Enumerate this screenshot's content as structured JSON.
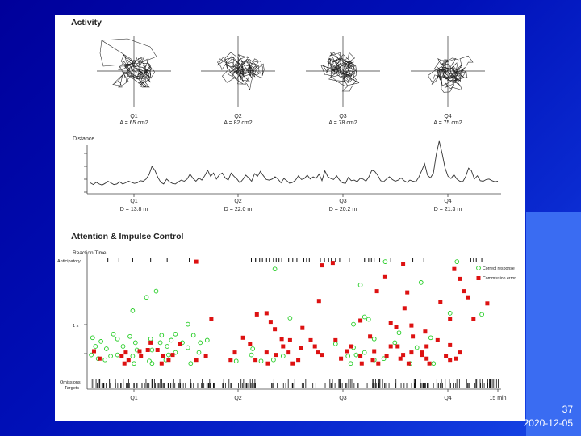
{
  "slide": {
    "number": "37",
    "date": "2020-12-05"
  },
  "chart_data": [
    {
      "type": "scatter",
      "title": "Activity",
      "panels": [
        {
          "label": "Q1",
          "area": "A = 65 cm2"
        },
        {
          "label": "Q2",
          "area": "A = 82 cm2"
        },
        {
          "label": "Q3",
          "area": "A = 78 cm2"
        },
        {
          "label": "Q4",
          "area": "A = 75 cm2"
        }
      ]
    },
    {
      "type": "line",
      "ylabel": "Distance",
      "quarters": [
        {
          "label": "Q1",
          "distance": "D = 13.8 m"
        },
        {
          "label": "Q2",
          "distance": "D = 22.0 m"
        },
        {
          "label": "Q3",
          "distance": "D = 20.2 m"
        },
        {
          "label": "Q4",
          "distance": "D = 21.3 m"
        }
      ],
      "x_range": [
        0,
        15
      ],
      "y_range": [
        0,
        10
      ],
      "values": [
        1.1,
        0.8,
        1.2,
        0.9,
        0.7,
        1.0,
        1.4,
        1.1,
        0.8,
        0.9,
        1.3,
        0.9,
        1.1,
        1.4,
        1.2,
        1.0,
        1.1,
        1.5,
        1.4,
        1.8,
        2.6,
        4.1,
        3.4,
        2.1,
        1.2,
        0.9,
        1.8,
        1.3,
        1.0,
        0.9,
        1.3,
        1.6,
        1.4,
        1.8,
        2.7,
        1.9,
        1.4,
        2.0,
        1.6,
        2.4,
        3.4,
        2.3,
        2.9,
        1.8,
        2.6,
        2.9,
        2.0,
        1.6,
        2.9,
        2.3,
        1.8,
        1.1,
        1.7,
        2.5,
        2.0,
        1.4,
        2.8,
        2.3,
        3.2,
        2.4,
        1.7,
        1.6,
        1.8,
        2.2,
        1.8,
        1.1,
        1.9,
        1.5,
        1.0,
        1.2,
        1.6,
        2.4,
        1.7,
        1.9,
        2.5,
        1.8,
        2.2,
        1.9,
        2.7,
        1.5,
        3.3,
        2.2,
        1.9,
        1.7,
        2.4,
        1.6,
        1.1,
        1.0,
        2.1,
        1.5,
        1.6,
        1.3,
        1.9,
        1.8,
        1.4,
        2.2,
        3.4,
        3.2,
        2.5,
        1.5,
        1.3,
        1.8,
        2.2,
        1.7,
        1.4,
        1.6,
        2.0,
        1.5,
        1.2,
        1.6,
        1.4,
        1.3,
        2.1,
        3.3,
        4.6,
        2.5,
        2.0,
        2.9,
        6.3,
        8.7,
        6.4,
        3.8,
        2.3,
        1.9,
        2.6,
        1.8,
        1.4,
        1.3,
        2.2,
        3.8,
        3.3,
        1.8,
        2.4,
        1.5,
        1.4,
        1.7,
        1.8,
        1.5,
        1.3,
        1.4
      ]
    },
    {
      "type": "scatter",
      "title": "Attention & Impulse Control",
      "ylabel": "Reaction Time",
      "y_ticks": {
        "anticipatory": "Anticipatory",
        "one_s": "1 s",
        "omissions": "Omissions",
        "targets": "Targets"
      },
      "x_ticks": [
        "Q1",
        "Q2",
        "Q3",
        "Q4",
        "15 min"
      ],
      "x_range": [
        0,
        15
      ],
      "legend": [
        {
          "name": "Correct response",
          "color": "#22cc22"
        },
        {
          "name": "Commission error",
          "color": "#dd1111"
        }
      ],
      "anticipatory_ticks": [
        0.75,
        1.15,
        1.65,
        2.3,
        2.9,
        3.7,
        3.72,
        5.95,
        6.1,
        6.15,
        6.25,
        6.35,
        6.5,
        6.6,
        6.75,
        6.85,
        6.95,
        7.05,
        7.3,
        7.45,
        7.6,
        7.85,
        7.95,
        8.05,
        8.45,
        8.6,
        8.75,
        8.85,
        9.0,
        9.15,
        9.5,
        10.05,
        10.1,
        10.2,
        10.3,
        10.4,
        10.6,
        11.0,
        11.8,
        12.2,
        13.9,
        14.0,
        14.1,
        14.3
      ],
      "commission_error": [
        {
          "x": 3.95,
          "y": 0.96
        },
        {
          "x": 8.5,
          "y": 0.93
        },
        {
          "x": 8.9,
          "y": 0.95
        },
        {
          "x": 10.8,
          "y": 0.84
        },
        {
          "x": 11.45,
          "y": 0.94
        },
        {
          "x": 13.3,
          "y": 0.9
        },
        {
          "x": 13.5,
          "y": 0.82
        },
        {
          "x": 10.5,
          "y": 0.72
        },
        {
          "x": 11.6,
          "y": 0.71
        },
        {
          "x": 13.65,
          "y": 0.72
        },
        {
          "x": 13.8,
          "y": 0.67
        },
        {
          "x": 8.4,
          "y": 0.64
        },
        {
          "x": 12.8,
          "y": 0.63
        },
        {
          "x": 14.5,
          "y": 0.62
        },
        {
          "x": 11.5,
          "y": 0.58
        },
        {
          "x": 6.15,
          "y": 0.53
        },
        {
          "x": 6.5,
          "y": 0.54
        },
        {
          "x": 4.5,
          "y": 0.49
        },
        {
          "x": 6.65,
          "y": 0.47
        },
        {
          "x": 9.9,
          "y": 0.48
        },
        {
          "x": 11.0,
          "y": 0.46
        },
        {
          "x": 13.15,
          "y": 0.49
        },
        {
          "x": 14.0,
          "y": 0.49
        },
        {
          "x": 11.2,
          "y": 0.43
        },
        {
          "x": 11.75,
          "y": 0.44
        },
        {
          "x": 6.8,
          "y": 0.41
        },
        {
          "x": 7.8,
          "y": 0.42
        },
        {
          "x": 12.25,
          "y": 0.39
        },
        {
          "x": 10.25,
          "y": 0.35
        },
        {
          "x": 11.8,
          "y": 0.35
        },
        {
          "x": 5.65,
          "y": 0.34
        },
        {
          "x": 7.05,
          "y": 0.33
        },
        {
          "x": 7.35,
          "y": 0.32
        },
        {
          "x": 8.1,
          "y": 0.32
        },
        {
          "x": 9.0,
          "y": 0.32
        },
        {
          "x": 12.7,
          "y": 0.32
        },
        {
          "x": 2.3,
          "y": 0.3
        },
        {
          "x": 3.35,
          "y": 0.29
        },
        {
          "x": 5.9,
          "y": 0.29
        },
        {
          "x": 7.1,
          "y": 0.27
        },
        {
          "x": 7.75,
          "y": 0.26
        },
        {
          "x": 8.25,
          "y": 0.27
        },
        {
          "x": 9.55,
          "y": 0.27
        },
        {
          "x": 11.0,
          "y": 0.27
        },
        {
          "x": 11.25,
          "y": 0.27
        },
        {
          "x": 12.3,
          "y": 0.27
        },
        {
          "x": 13.15,
          "y": 0.28
        },
        {
          "x": 2.2,
          "y": 0.24
        },
        {
          "x": 2.55,
          "y": 0.24
        },
        {
          "x": 0.25,
          "y": 0.23
        },
        {
          "x": 1.4,
          "y": 0.22
        },
        {
          "x": 1.9,
          "y": 0.23
        },
        {
          "x": 5.35,
          "y": 0.22
        },
        {
          "x": 6.5,
          "y": 0.22
        },
        {
          "x": 7.3,
          "y": 0.22
        },
        {
          "x": 8.35,
          "y": 0.22
        },
        {
          "x": 9.4,
          "y": 0.23
        },
        {
          "x": 10.4,
          "y": 0.23
        },
        {
          "x": 11.75,
          "y": 0.22
        },
        {
          "x": 12.15,
          "y": 0.22
        },
        {
          "x": 13.5,
          "y": 0.22
        },
        {
          "x": 1.25,
          "y": 0.19
        },
        {
          "x": 1.95,
          "y": 0.19
        },
        {
          "x": 2.75,
          "y": 0.19
        },
        {
          "x": 3.1,
          "y": 0.2
        },
        {
          "x": 4.3,
          "y": 0.19
        },
        {
          "x": 6.85,
          "y": 0.2
        },
        {
          "x": 8.5,
          "y": 0.2
        },
        {
          "x": 9.9,
          "y": 0.19
        },
        {
          "x": 10.85,
          "y": 0.19
        },
        {
          "x": 11.45,
          "y": 0.2
        },
        {
          "x": 12.15,
          "y": 0.2
        },
        {
          "x": 13.0,
          "y": 0.19
        },
        {
          "x": 0.45,
          "y": 0.17
        },
        {
          "x": 1.5,
          "y": 0.16
        },
        {
          "x": 2.95,
          "y": 0.16
        },
        {
          "x": 3.95,
          "y": 0.16
        },
        {
          "x": 5.2,
          "y": 0.16
        },
        {
          "x": 6.1,
          "y": 0.16
        },
        {
          "x": 7.65,
          "y": 0.16
        },
        {
          "x": 9.2,
          "y": 0.17
        },
        {
          "x": 10.35,
          "y": 0.16
        },
        {
          "x": 11.35,
          "y": 0.17
        },
        {
          "x": 12.3,
          "y": 0.17
        },
        {
          "x": 13.15,
          "y": 0.16
        },
        {
          "x": 13.35,
          "y": 0.17
        },
        {
          "x": 1.35,
          "y": 0.13
        },
        {
          "x": 2.7,
          "y": 0.13
        },
        {
          "x": 6.55,
          "y": 0.13
        },
        {
          "x": 7.45,
          "y": 0.13
        },
        {
          "x": 9.95,
          "y": 0.13
        },
        {
          "x": 10.55,
          "y": 0.13
        },
        {
          "x": 11.65,
          "y": 0.13
        },
        {
          "x": 12.4,
          "y": 0.13
        }
      ],
      "correct_response": [
        {
          "x": 6.8,
          "y": 0.9
        },
        {
          "x": 10.8,
          "y": 0.96
        },
        {
          "x": 13.4,
          "y": 0.96
        },
        {
          "x": 9.9,
          "y": 0.77
        },
        {
          "x": 12.1,
          "y": 0.79
        },
        {
          "x": 2.5,
          "y": 0.72
        },
        {
          "x": 2.15,
          "y": 0.67
        },
        {
          "x": 1.65,
          "y": 0.56
        },
        {
          "x": 10.05,
          "y": 0.51
        },
        {
          "x": 7.35,
          "y": 0.5
        },
        {
          "x": 13.15,
          "y": 0.54
        },
        {
          "x": 14.3,
          "y": 0.53
        },
        {
          "x": 10.2,
          "y": 0.49
        },
        {
          "x": 9.65,
          "y": 0.45
        },
        {
          "x": 3.65,
          "y": 0.45
        },
        {
          "x": 11.3,
          "y": 0.38
        },
        {
          "x": 0.95,
          "y": 0.37
        },
        {
          "x": 3.2,
          "y": 0.37
        },
        {
          "x": 1.55,
          "y": 0.35
        },
        {
          "x": 2.7,
          "y": 0.36
        },
        {
          "x": 3.85,
          "y": 0.36
        },
        {
          "x": 0.2,
          "y": 0.34
        },
        {
          "x": 1.1,
          "y": 0.33
        },
        {
          "x": 2.3,
          "y": 0.33
        },
        {
          "x": 3.05,
          "y": 0.32
        },
        {
          "x": 4.35,
          "y": 0.32
        },
        {
          "x": 10.4,
          "y": 0.33
        },
        {
          "x": 12.45,
          "y": 0.34
        },
        {
          "x": 0.5,
          "y": 0.31
        },
        {
          "x": 1.75,
          "y": 0.3
        },
        {
          "x": 2.65,
          "y": 0.3
        },
        {
          "x": 3.45,
          "y": 0.3
        },
        {
          "x": 4.1,
          "y": 0.3
        },
        {
          "x": 9.0,
          "y": 0.29
        },
        {
          "x": 11.15,
          "y": 0.3
        },
        {
          "x": 0.3,
          "y": 0.27
        },
        {
          "x": 1.3,
          "y": 0.27
        },
        {
          "x": 2.9,
          "y": 0.27
        },
        {
          "x": 3.65,
          "y": 0.26
        },
        {
          "x": 6.0,
          "y": 0.25
        },
        {
          "x": 9.65,
          "y": 0.26
        },
        {
          "x": 11.95,
          "y": 0.26
        },
        {
          "x": 0.7,
          "y": 0.25
        },
        {
          "x": 1.8,
          "y": 0.24
        },
        {
          "x": 2.35,
          "y": 0.24
        },
        {
          "x": 3.2,
          "y": 0.22
        },
        {
          "x": 4.05,
          "y": 0.22
        },
        {
          "x": 10.05,
          "y": 0.22
        },
        {
          "x": 0.15,
          "y": 0.2
        },
        {
          "x": 0.85,
          "y": 0.19
        },
        {
          "x": 1.1,
          "y": 0.2
        },
        {
          "x": 1.65,
          "y": 0.19
        },
        {
          "x": 2.95,
          "y": 0.2
        },
        {
          "x": 5.95,
          "y": 0.2
        },
        {
          "x": 7.1,
          "y": 0.19
        },
        {
          "x": 9.45,
          "y": 0.19
        },
        {
          "x": 9.75,
          "y": 0.2
        },
        {
          "x": 0.4,
          "y": 0.17
        },
        {
          "x": 0.65,
          "y": 0.16
        },
        {
          "x": 2.25,
          "y": 0.15
        },
        {
          "x": 2.85,
          "y": 0.16
        },
        {
          "x": 5.4,
          "y": 0.15
        },
        {
          "x": 6.3,
          "y": 0.15
        },
        {
          "x": 6.75,
          "y": 0.16
        },
        {
          "x": 10.4,
          "y": 0.16
        },
        {
          "x": 10.75,
          "y": 0.17
        },
        {
          "x": 1.7,
          "y": 0.13
        },
        {
          "x": 2.35,
          "y": 0.13
        },
        {
          "x": 3.75,
          "y": 0.13
        },
        {
          "x": 9.55,
          "y": 0.13
        },
        {
          "x": 11.7,
          "y": 0.13
        },
        {
          "x": 12.55,
          "y": 0.13
        }
      ]
    }
  ]
}
